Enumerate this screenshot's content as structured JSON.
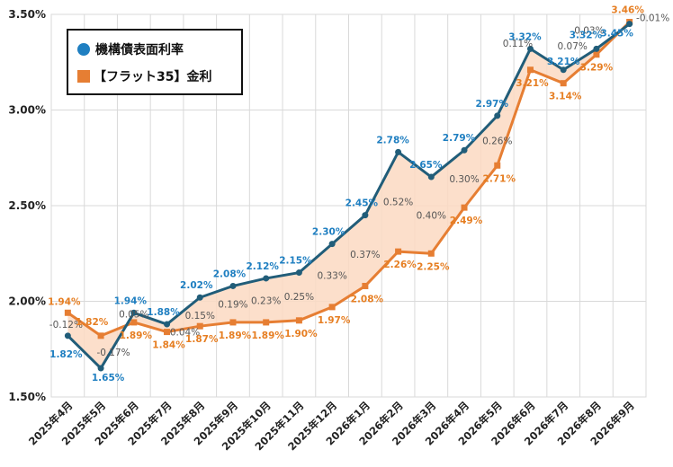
{
  "chart_data": {
    "type": "line",
    "categories": [
      "2025年4月",
      "2025年5月",
      "2025年6月",
      "2025年7月",
      "2025年8月",
      "2025年9月",
      "2025年10月",
      "2025年11月",
      "2025年12月",
      "2026年1月",
      "2026年2月",
      "2026年3月",
      "2026年4月",
      "2026年5月",
      "2026年6月",
      "2026年7月",
      "2026年8月",
      "2026年9月"
    ],
    "series": [
      {
        "name": "機構債表面利率",
        "values": [
          1.82,
          1.65,
          1.94,
          1.88,
          2.02,
          2.08,
          2.12,
          2.15,
          2.3,
          2.45,
          2.78,
          2.65,
          2.79,
          2.97,
          3.32,
          3.21,
          3.32,
          3.45
        ],
        "labels": [
          "1.82%",
          "1.65%",
          "1.94%",
          "1.88%",
          "2.02%",
          "2.08%",
          "2.12%",
          "2.15%",
          "2.30%",
          "2.45%",
          "2.78%",
          "2.65%",
          "2.79%",
          "2.97%",
          "3.32%",
          "3.21%",
          "3.32%",
          "3.45%"
        ],
        "color": "#215d79",
        "label_color": "#1f7fc1",
        "marker": "circle"
      },
      {
        "name": "【フラット35】金利",
        "values": [
          1.94,
          1.82,
          1.89,
          1.84,
          1.87,
          1.89,
          1.89,
          1.9,
          1.97,
          2.08,
          2.26,
          2.25,
          2.49,
          2.71,
          3.21,
          3.14,
          3.29,
          3.46
        ],
        "labels": [
          "1.94%",
          "1.82%",
          "1.89%",
          "1.84%",
          "1.87%",
          "1.89%",
          "1.89%",
          "1.90%",
          "1.97%",
          "2.08%",
          "2.26%",
          "2.25%",
          "2.49%",
          "2.71%",
          "3.21%",
          "3.14%",
          "3.29%",
          "3.46%"
        ],
        "color": "#e67e33",
        "label_color": "#e67e22",
        "marker": "square"
      }
    ],
    "differences": [
      "-0.12%",
      "-0.17%",
      "0.05%",
      "0.04%",
      "0.15%",
      "0.19%",
      "0.23%",
      "0.25%",
      "0.33%",
      "0.37%",
      "0.52%",
      "0.40%",
      "0.30%",
      "0.26%",
      "0.11%",
      "0.07%",
      "0.03%",
      "-0.01%"
    ],
    "y_ticks": [
      "1.50%",
      "2.00%",
      "2.50%",
      "3.00%",
      "3.50%"
    ],
    "ylim": [
      1.5,
      3.5
    ],
    "grid": true,
    "fill_between": "#fbd9c2",
    "legend_position": "top-left",
    "title": "",
    "xlabel": "",
    "ylabel": ""
  }
}
